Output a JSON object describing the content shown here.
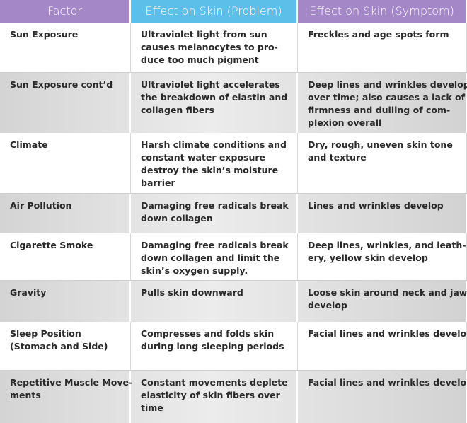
{
  "table": {
    "header": [
      "Factor",
      "Effect on Skin (Problem)",
      "Effect on Skin (Symptom)"
    ],
    "rows": [
      [
        [
          "Sun Exposure"
        ],
        [
          "Ultraviolet light from sun",
          "causes melanocytes to pro-",
          "duce too much pigment"
        ],
        [
          "Freckles and age spots form"
        ]
      ],
      [
        [
          "Sun Exposure cont’d"
        ],
        [
          "Ultraviolet light accelerates",
          "the breakdown of elastin and",
          "collagen fibers"
        ],
        [
          "Deep lines and wrinkles develop",
          "over time; also causes a lack of",
          "firmness and dulling of com-",
          "plexion overall"
        ]
      ],
      [
        [
          "Climate"
        ],
        [
          "Harsh climate conditions and",
          "constant water exposure",
          "destroy the skin’s moisture",
          "barrier"
        ],
        [
          "Dry, rough, uneven skin tone",
          "and texture"
        ]
      ],
      [
        [
          "Air Pollution"
        ],
        [
          "Damaging free radicals break",
          "down collagen"
        ],
        [
          "Lines and wrinkles develop"
        ]
      ],
      [
        [
          "Cigarette Smoke"
        ],
        [
          "Damaging free radicals break",
          "down collagen and limit the",
          "skin’s oxygen supply."
        ],
        [
          "Deep lines, wrinkles, and leath-",
          "ery, yellow skin develop"
        ]
      ],
      [
        [
          "Gravity"
        ],
        [
          "Pulls skin downward"
        ],
        [
          "Loose skin around neck and jaw",
          "develop"
        ]
      ],
      [
        [
          "Sleep Position",
          "(Stomach and Side)"
        ],
        [
          "Compresses and folds skin",
          "during long sleeping periods"
        ],
        [
          "Facial lines and wrinkles develop"
        ]
      ],
      [
        [
          "Repetitive Muscle Move-",
          "ments"
        ],
        [
          "Constant movements deplete",
          "elasticity of skin fibers over",
          "time"
        ],
        [
          "Facial lines and wrinkles develop"
        ]
      ]
    ]
  }
}
